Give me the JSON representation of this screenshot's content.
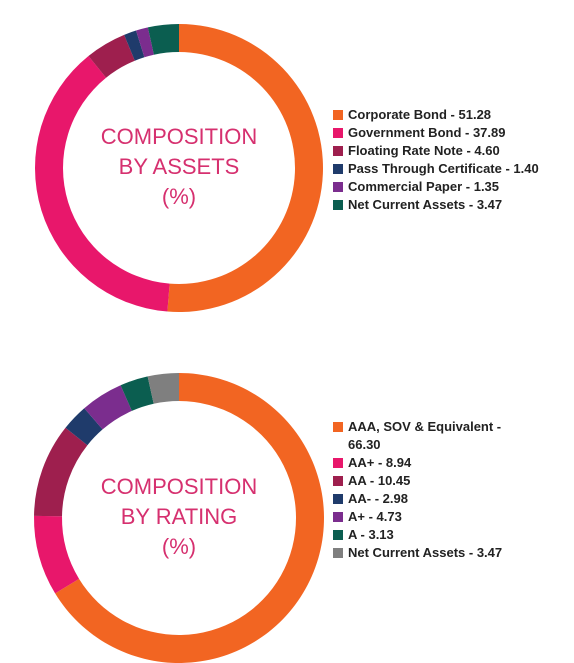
{
  "chart_data": [
    {
      "type": "donut",
      "title_lines": [
        "COMPOSITION",
        "BY ASSETS",
        "(%)"
      ],
      "categories": [
        "Corporate Bond - 51.28",
        "Government Bond - 37.89",
        "Floating Rate Note - 4.60",
        "Pass Through Certificate - 1.40",
        "Commercial Paper - 1.35",
        "Net Current Assets - 3.47"
      ],
      "values": [
        51.28,
        37.89,
        4.6,
        1.4,
        1.35,
        3.47
      ],
      "colors": [
        "#f26522",
        "#e8176b",
        "#9e1f4e",
        "#1f3b6b",
        "#7b2d8e",
        "#0b5e50"
      ]
    },
    {
      "type": "donut",
      "title_lines": [
        "COMPOSITION",
        "BY RATING",
        "(%)"
      ],
      "categories": [
        "AAA, SOV & Equivalent - 66.30",
        "AA+ - 8.94",
        "AA - 10.45",
        "AA- - 2.98",
        "A+ - 4.73",
        "A - 3.13",
        "Net Current Assets - 3.47"
      ],
      "values": [
        66.3,
        8.94,
        10.45,
        2.98,
        4.73,
        3.13,
        3.47
      ],
      "colors": [
        "#f26522",
        "#e8176b",
        "#9e1f4e",
        "#1f3b6b",
        "#7b2d8e",
        "#0b5e50",
        "#7f7f7f"
      ]
    }
  ]
}
